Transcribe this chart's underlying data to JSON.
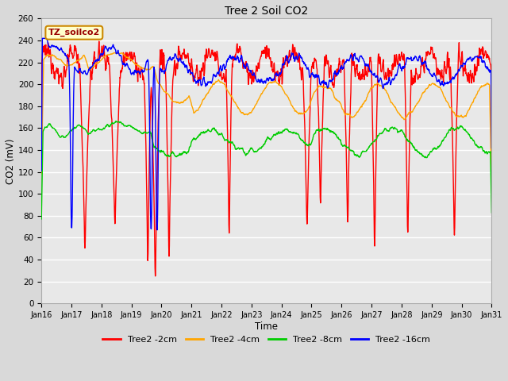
{
  "title": "Tree 2 Soil CO2",
  "xlabel": "Time",
  "ylabel": "CO2 (mV)",
  "legend_label": "TZ_soilco2",
  "series_labels": [
    "Tree2 -2cm",
    "Tree2 -4cm",
    "Tree2 -8cm",
    "Tree2 -16cm"
  ],
  "series_colors": [
    "#ff0000",
    "#ffa500",
    "#00cc00",
    "#0000ff"
  ],
  "ylim": [
    0,
    260
  ],
  "xlim": [
    0,
    15
  ],
  "xtick_labels": [
    "Jan 16",
    "Jan 17",
    "Jan 18",
    "Jan 19",
    "Jan 20",
    "Jan 21",
    "Jan 22",
    "Jan 23",
    "Jan 24",
    "Jan 25",
    "Jan 26",
    "Jan 27",
    "Jan 28",
    "Jan 29",
    "Jan 30",
    "Jan 31"
  ],
  "ytick_vals": [
    0,
    20,
    40,
    60,
    80,
    100,
    120,
    140,
    160,
    180,
    200,
    220,
    240,
    260
  ],
  "bg_color": "#d9d9d9",
  "plot_bg_color": "#e8e8e8",
  "grid_color": "#ffffff",
  "linewidth": 1.0,
  "figsize": [
    6.4,
    4.8
  ],
  "dpi": 100
}
